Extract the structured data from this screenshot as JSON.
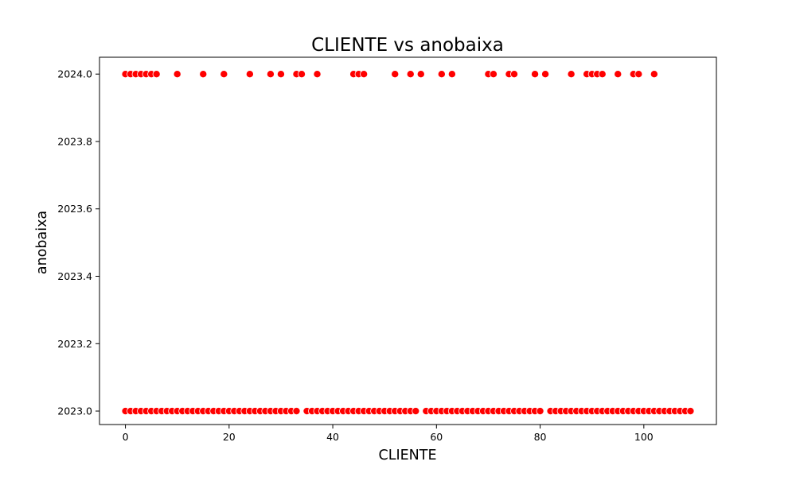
{
  "chart_data": {
    "type": "scatter",
    "title": "CLIENTE vs anobaixa",
    "xlabel": "CLIENTE",
    "ylabel": "anobaixa",
    "xlim": [
      -5,
      114
    ],
    "ylim": [
      2022.96,
      2024.05
    ],
    "xticks": [
      0,
      20,
      40,
      60,
      80,
      100
    ],
    "xtick_labels": [
      "0",
      "20",
      "40",
      "60",
      "80",
      "100"
    ],
    "yticks": [
      2023.0,
      2023.2,
      2023.4,
      2023.6,
      2023.8,
      2024.0
    ],
    "ytick_labels": [
      "2023.0",
      "2023.2",
      "2023.4",
      "2023.6",
      "2023.8",
      "2024.0"
    ],
    "grid": false,
    "marker_color": "#ff0000",
    "marker_edge_color": "#ffffff",
    "series": [
      {
        "x": [
          0,
          1,
          2,
          3,
          4,
          5,
          6,
          7,
          8,
          9,
          10,
          11,
          12,
          13,
          14,
          15,
          16,
          17,
          18,
          19,
          20,
          21,
          22,
          23,
          24,
          25,
          26,
          27,
          28,
          29,
          30,
          31,
          32,
          33,
          35,
          36,
          37,
          38,
          39,
          40,
          41,
          42,
          43,
          44,
          45,
          46,
          47,
          48,
          49,
          50,
          51,
          52,
          53,
          54,
          55,
          56,
          58,
          59,
          60,
          61,
          62,
          63,
          64,
          65,
          66,
          67,
          68,
          69,
          70,
          71,
          72,
          73,
          74,
          75,
          76,
          77,
          78,
          79,
          80,
          82,
          83,
          84,
          85,
          86,
          87,
          88,
          89,
          90,
          91,
          92,
          93,
          94,
          95,
          96,
          97,
          98,
          99,
          100,
          101,
          102,
          103,
          104,
          105,
          106,
          107,
          108,
          109
        ],
        "y": [
          2023.0,
          2023.0,
          2023.0,
          2023.0,
          2023.0,
          2023.0,
          2023.0,
          2023.0,
          2023.0,
          2023.0,
          2023.0,
          2023.0,
          2023.0,
          2023.0,
          2023.0,
          2023.0,
          2023.0,
          2023.0,
          2023.0,
          2023.0,
          2023.0,
          2023.0,
          2023.0,
          2023.0,
          2023.0,
          2023.0,
          2023.0,
          2023.0,
          2023.0,
          2023.0,
          2023.0,
          2023.0,
          2023.0,
          2023.0,
          2023.0,
          2023.0,
          2023.0,
          2023.0,
          2023.0,
          2023.0,
          2023.0,
          2023.0,
          2023.0,
          2023.0,
          2023.0,
          2023.0,
          2023.0,
          2023.0,
          2023.0,
          2023.0,
          2023.0,
          2023.0,
          2023.0,
          2023.0,
          2023.0,
          2023.0,
          2023.0,
          2023.0,
          2023.0,
          2023.0,
          2023.0,
          2023.0,
          2023.0,
          2023.0,
          2023.0,
          2023.0,
          2023.0,
          2023.0,
          2023.0,
          2023.0,
          2023.0,
          2023.0,
          2023.0,
          2023.0,
          2023.0,
          2023.0,
          2023.0,
          2023.0,
          2023.0,
          2023.0,
          2023.0,
          2023.0,
          2023.0,
          2023.0,
          2023.0,
          2023.0,
          2023.0,
          2023.0,
          2023.0,
          2023.0,
          2023.0,
          2023.0,
          2023.0,
          2023.0,
          2023.0,
          2023.0,
          2023.0,
          2023.0,
          2023.0,
          2023.0,
          2023.0,
          2023.0,
          2023.0,
          2023.0,
          2023.0,
          2023.0,
          2023.0
        ]
      },
      {
        "x": [
          0,
          1,
          2,
          3,
          4,
          5,
          6,
          10,
          15,
          19,
          24,
          28,
          30,
          33,
          34,
          37,
          44,
          45,
          46,
          52,
          55,
          57,
          61,
          63,
          70,
          71,
          74,
          75,
          79,
          81,
          86,
          89,
          90,
          91,
          92,
          95,
          98,
          99,
          102
        ],
        "y": [
          2024.0,
          2024.0,
          2024.0,
          2024.0,
          2024.0,
          2024.0,
          2024.0,
          2024.0,
          2024.0,
          2024.0,
          2024.0,
          2024.0,
          2024.0,
          2024.0,
          2024.0,
          2024.0,
          2024.0,
          2024.0,
          2024.0,
          2024.0,
          2024.0,
          2024.0,
          2024.0,
          2024.0,
          2024.0,
          2024.0,
          2024.0,
          2024.0,
          2024.0,
          2024.0,
          2024.0,
          2024.0,
          2024.0,
          2024.0,
          2024.0,
          2024.0,
          2024.0,
          2024.0,
          2024.0
        ]
      }
    ]
  }
}
